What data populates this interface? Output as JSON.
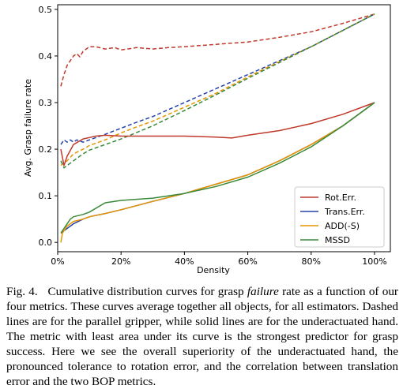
{
  "chart_data": {
    "type": "line",
    "xlabel": "Density",
    "ylabel": "Avg. Grasp failure rate",
    "xlim": [
      0,
      1.05
    ],
    "ylim": [
      -0.02,
      0.51
    ],
    "x_ticks": [
      0,
      0.2,
      0.4,
      0.6,
      0.8,
      1.0
    ],
    "x_tick_labels": [
      "0%",
      "20%",
      "40%",
      "60%",
      "80%",
      "100%"
    ],
    "y_ticks": [
      0.0,
      0.1,
      0.2,
      0.3,
      0.4,
      0.5
    ],
    "y_tick_labels": [
      "0.0",
      "0.1",
      "0.2",
      "0.3",
      "0.4",
      "0.5"
    ],
    "legend_position": "lower-right",
    "legend": [
      {
        "name": "Rot.Err.",
        "color": "#c0392b"
      },
      {
        "name": "Trans.Err.",
        "color": "#2643a8"
      },
      {
        "name": "ADD(-S)",
        "color": "#e69500"
      },
      {
        "name": "MSSD",
        "color": "#3a8a3a"
      }
    ],
    "series": [
      {
        "name": "Rot.Err.",
        "style": "dashed",
        "color": "#c0392b",
        "x": [
          0.01,
          0.02,
          0.03,
          0.04,
          0.05,
          0.06,
          0.07,
          0.08,
          0.1,
          0.12,
          0.15,
          0.18,
          0.2,
          0.25,
          0.3,
          0.35,
          0.4,
          0.5,
          0.6,
          0.7,
          0.8,
          0.9,
          1.0
        ],
        "y": [
          0.335,
          0.36,
          0.38,
          0.39,
          0.4,
          0.405,
          0.398,
          0.41,
          0.42,
          0.42,
          0.415,
          0.418,
          0.413,
          0.418,
          0.415,
          0.418,
          0.42,
          0.425,
          0.43,
          0.44,
          0.452,
          0.47,
          0.49
        ]
      },
      {
        "name": "Trans.Err.",
        "style": "dashed",
        "color": "#2643a8",
        "x": [
          0.01,
          0.02,
          0.03,
          0.04,
          0.05,
          0.06,
          0.08,
          0.1,
          0.15,
          0.2,
          0.25,
          0.3,
          0.4,
          0.5,
          0.6,
          0.7,
          0.8,
          0.9,
          1.0
        ],
        "y": [
          0.21,
          0.22,
          0.215,
          0.22,
          0.215,
          0.22,
          0.215,
          0.22,
          0.232,
          0.245,
          0.258,
          0.27,
          0.3,
          0.33,
          0.36,
          0.39,
          0.42,
          0.455,
          0.49
        ]
      },
      {
        "name": "ADD(-S)",
        "style": "dashed",
        "color": "#e69500",
        "x": [
          0.01,
          0.02,
          0.03,
          0.05,
          0.08,
          0.1,
          0.15,
          0.2,
          0.25,
          0.3,
          0.4,
          0.5,
          0.6,
          0.7,
          0.8,
          0.9,
          1.0
        ],
        "y": [
          0.165,
          0.17,
          0.175,
          0.19,
          0.2,
          0.208,
          0.22,
          0.235,
          0.248,
          0.26,
          0.29,
          0.32,
          0.355,
          0.388,
          0.42,
          0.455,
          0.49
        ]
      },
      {
        "name": "MSSD",
        "style": "dashed",
        "color": "#3a8a3a",
        "x": [
          0.01,
          0.02,
          0.03,
          0.05,
          0.08,
          0.1,
          0.15,
          0.2,
          0.25,
          0.3,
          0.4,
          0.5,
          0.6,
          0.7,
          0.8,
          0.9,
          1.0
        ],
        "y": [
          0.175,
          0.16,
          0.165,
          0.175,
          0.19,
          0.198,
          0.21,
          0.222,
          0.236,
          0.25,
          0.283,
          0.317,
          0.352,
          0.386,
          0.42,
          0.455,
          0.49
        ]
      },
      {
        "name": "Rot.Err.",
        "style": "solid",
        "color": "#c0392b",
        "x": [
          0.01,
          0.02,
          0.03,
          0.05,
          0.08,
          0.1,
          0.12,
          0.15,
          0.2,
          0.3,
          0.4,
          0.5,
          0.55,
          0.6,
          0.7,
          0.8,
          0.9,
          1.0
        ],
        "y": [
          0.2,
          0.165,
          0.185,
          0.21,
          0.222,
          0.225,
          0.228,
          0.23,
          0.228,
          0.228,
          0.228,
          0.226,
          0.224,
          0.23,
          0.24,
          0.255,
          0.275,
          0.3
        ]
      },
      {
        "name": "Trans.Err.",
        "style": "solid",
        "color": "#2643a8",
        "x": [
          0.01,
          0.02,
          0.03,
          0.05,
          0.08,
          0.1,
          0.15,
          0.2,
          0.3,
          0.4,
          0.5,
          0.6,
          0.7,
          0.8,
          0.9,
          1.0
        ],
        "y": [
          0.02,
          0.025,
          0.03,
          0.04,
          0.05,
          0.055,
          0.062,
          0.07,
          0.088,
          0.105,
          0.125,
          0.145,
          0.175,
          0.21,
          0.25,
          0.3
        ]
      },
      {
        "name": "ADD(-S)",
        "style": "solid",
        "color": "#e69500",
        "x": [
          0.01,
          0.015,
          0.02,
          0.03,
          0.05,
          0.08,
          0.1,
          0.15,
          0.2,
          0.3,
          0.4,
          0.5,
          0.6,
          0.7,
          0.8,
          0.9,
          1.0
        ],
        "y": [
          0.0,
          0.02,
          0.025,
          0.035,
          0.045,
          0.05,
          0.055,
          0.062,
          0.07,
          0.088,
          0.105,
          0.125,
          0.145,
          0.175,
          0.21,
          0.25,
          0.3
        ]
      },
      {
        "name": "MSSD",
        "style": "solid",
        "color": "#3a8a3a",
        "x": [
          0.01,
          0.02,
          0.03,
          0.04,
          0.05,
          0.08,
          0.1,
          0.15,
          0.2,
          0.3,
          0.4,
          0.5,
          0.6,
          0.7,
          0.8,
          0.9,
          1.0
        ],
        "y": [
          0.02,
          0.03,
          0.04,
          0.05,
          0.055,
          0.06,
          0.065,
          0.085,
          0.09,
          0.095,
          0.105,
          0.12,
          0.14,
          0.17,
          0.205,
          0.25,
          0.3
        ]
      }
    ]
  },
  "caption": {
    "label": "Fig. 4.",
    "text_before": "Cumulative distribution curves for grasp ",
    "emphasis": "failure",
    "text_after": " rate as a function of our four metrics. These curves average together all objects, for all estimators. Dashed lines are for the parallel gripper, while solid lines are for the underactuated hand. The metric with least area under its curve is the strongest predictor for grasp success. Here we see the overall superiority of the underactuated hand, the pronounced tolerance to rotation error, and the correlation between translation error and the two BOP metrics."
  }
}
